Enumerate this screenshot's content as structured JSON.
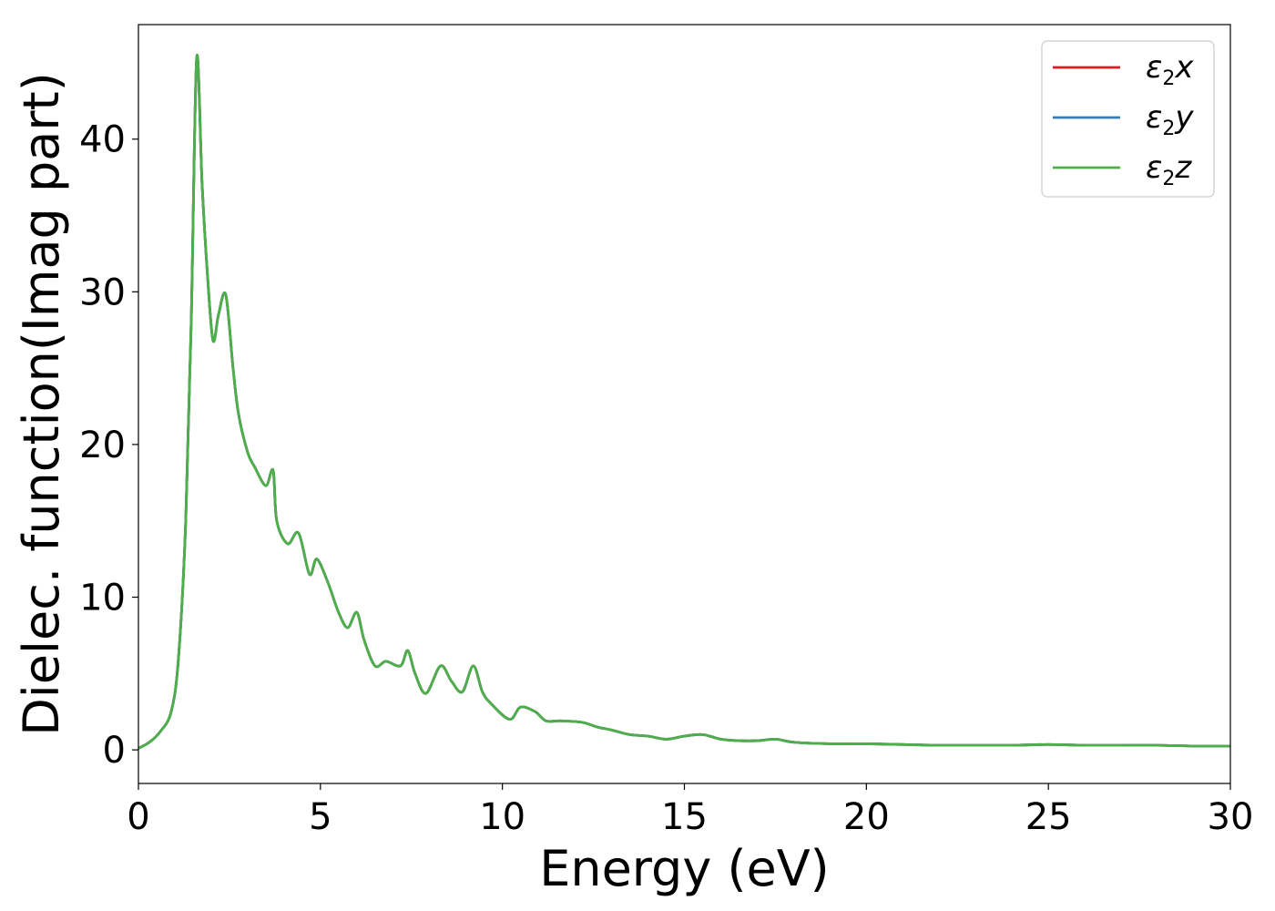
{
  "chart_data": {
    "type": "line",
    "xlabel": "Energy (eV)",
    "ylabel": "Dielec. function(Imag part)",
    "xlim": [
      0,
      30
    ],
    "ylim": [
      -2.2,
      47.5
    ],
    "xticks": [
      0,
      5,
      10,
      15,
      20,
      25,
      30
    ],
    "yticks": [
      0,
      10,
      20,
      30,
      40
    ],
    "grid": false,
    "legend_position": "top-right",
    "series": [
      {
        "name": "ε2x",
        "legend": {
          "base": "ε",
          "sub": "2",
          "var": "x"
        },
        "color": "#e41a1c",
        "x": [
          0,
          0.3,
          0.6,
          0.9,
          1.1,
          1.3,
          1.45,
          1.6,
          1.75,
          1.9,
          2.05,
          2.2,
          2.4,
          2.6,
          2.75,
          3.0,
          3.2,
          3.5,
          3.7,
          3.8,
          4.1,
          4.4,
          4.7,
          4.9,
          5.2,
          5.5,
          5.75,
          6.0,
          6.2,
          6.5,
          6.8,
          7.2,
          7.4,
          7.6,
          7.9,
          8.3,
          8.6,
          8.9,
          9.2,
          9.45,
          9.7,
          10.2,
          10.5,
          10.9,
          11.2,
          11.6,
          12.2,
          12.6,
          13.0,
          13.5,
          14.0,
          14.5,
          15.0,
          15.5,
          16.0,
          16.5,
          17.0,
          17.5,
          18.0,
          19.0,
          20.0,
          21.0,
          22.0,
          23.0,
          24.0,
          25.0,
          26.0,
          27.0,
          28.0,
          29.0,
          30.0
        ],
        "y": [
          0.1,
          0.5,
          1.2,
          2.5,
          6.0,
          15.0,
          28.0,
          45.3,
          37.0,
          31.0,
          26.8,
          28.5,
          29.8,
          25.0,
          22.0,
          19.5,
          18.5,
          17.3,
          18.3,
          15.0,
          13.5,
          14.2,
          11.5,
          12.5,
          11.0,
          9.0,
          8.0,
          9.0,
          7.2,
          5.5,
          5.8,
          5.5,
          6.5,
          5.0,
          3.7,
          5.5,
          4.5,
          3.8,
          5.5,
          3.8,
          3.0,
          2.0,
          2.8,
          2.5,
          1.9,
          1.9,
          1.8,
          1.5,
          1.3,
          1.0,
          0.9,
          0.7,
          0.9,
          1.0,
          0.7,
          0.6,
          0.6,
          0.7,
          0.5,
          0.4,
          0.4,
          0.35,
          0.3,
          0.3,
          0.3,
          0.35,
          0.3,
          0.3,
          0.3,
          0.25,
          0.25
        ]
      },
      {
        "name": "ε2y",
        "legend": {
          "base": "ε",
          "sub": "2",
          "var": "y"
        },
        "color": "#377eb8",
        "x": [
          0,
          0.3,
          0.6,
          0.9,
          1.1,
          1.3,
          1.45,
          1.6,
          1.75,
          1.9,
          2.05,
          2.2,
          2.4,
          2.6,
          2.75,
          3.0,
          3.2,
          3.5,
          3.7,
          3.8,
          4.1,
          4.4,
          4.7,
          4.9,
          5.2,
          5.5,
          5.75,
          6.0,
          6.2,
          6.5,
          6.8,
          7.2,
          7.4,
          7.6,
          7.9,
          8.3,
          8.6,
          8.9,
          9.2,
          9.45,
          9.7,
          10.2,
          10.5,
          10.9,
          11.2,
          11.6,
          12.2,
          12.6,
          13.0,
          13.5,
          14.0,
          14.5,
          15.0,
          15.5,
          16.0,
          16.5,
          17.0,
          17.5,
          18.0,
          19.0,
          20.0,
          21.0,
          22.0,
          23.0,
          24.0,
          25.0,
          26.0,
          27.0,
          28.0,
          29.0,
          30.0
        ],
        "y": [
          0.1,
          0.5,
          1.2,
          2.5,
          6.0,
          15.0,
          28.0,
          45.3,
          37.0,
          31.0,
          26.8,
          28.5,
          29.8,
          25.0,
          22.0,
          19.5,
          18.5,
          17.3,
          18.3,
          15.0,
          13.5,
          14.2,
          11.5,
          12.5,
          11.0,
          9.0,
          8.0,
          9.0,
          7.2,
          5.5,
          5.8,
          5.5,
          6.5,
          5.0,
          3.7,
          5.5,
          4.5,
          3.8,
          5.5,
          3.8,
          3.0,
          2.0,
          2.8,
          2.5,
          1.9,
          1.9,
          1.8,
          1.5,
          1.3,
          1.0,
          0.9,
          0.7,
          0.9,
          1.0,
          0.7,
          0.6,
          0.6,
          0.7,
          0.5,
          0.4,
          0.4,
          0.35,
          0.3,
          0.3,
          0.3,
          0.35,
          0.3,
          0.3,
          0.3,
          0.25,
          0.25
        ]
      },
      {
        "name": "ε2z",
        "legend": {
          "base": "ε",
          "sub": "2",
          "var": "z"
        },
        "color": "#4daf4a",
        "x": [
          0,
          0.3,
          0.6,
          0.9,
          1.1,
          1.3,
          1.45,
          1.6,
          1.75,
          1.9,
          2.05,
          2.2,
          2.4,
          2.6,
          2.75,
          3.0,
          3.2,
          3.5,
          3.7,
          3.8,
          4.1,
          4.4,
          4.7,
          4.9,
          5.2,
          5.5,
          5.75,
          6.0,
          6.2,
          6.5,
          6.8,
          7.2,
          7.4,
          7.6,
          7.9,
          8.3,
          8.6,
          8.9,
          9.2,
          9.45,
          9.7,
          10.2,
          10.5,
          10.9,
          11.2,
          11.6,
          12.2,
          12.6,
          13.0,
          13.5,
          14.0,
          14.5,
          15.0,
          15.5,
          16.0,
          16.5,
          17.0,
          17.5,
          18.0,
          19.0,
          20.0,
          21.0,
          22.0,
          23.0,
          24.0,
          25.0,
          26.0,
          27.0,
          28.0,
          29.0,
          30.0
        ],
        "y": [
          0.1,
          0.5,
          1.2,
          2.5,
          6.0,
          15.0,
          28.0,
          45.3,
          37.0,
          31.0,
          26.8,
          28.5,
          29.8,
          25.0,
          22.0,
          19.5,
          18.5,
          17.3,
          18.3,
          15.0,
          13.5,
          14.2,
          11.5,
          12.5,
          11.0,
          9.0,
          8.0,
          9.0,
          7.2,
          5.5,
          5.8,
          5.5,
          6.5,
          5.0,
          3.7,
          5.5,
          4.5,
          3.8,
          5.5,
          3.8,
          3.0,
          2.0,
          2.8,
          2.5,
          1.9,
          1.9,
          1.8,
          1.5,
          1.3,
          1.0,
          0.9,
          0.7,
          0.9,
          1.0,
          0.7,
          0.6,
          0.6,
          0.7,
          0.5,
          0.4,
          0.4,
          0.35,
          0.3,
          0.3,
          0.3,
          0.35,
          0.3,
          0.3,
          0.3,
          0.25,
          0.25
        ]
      }
    ]
  }
}
